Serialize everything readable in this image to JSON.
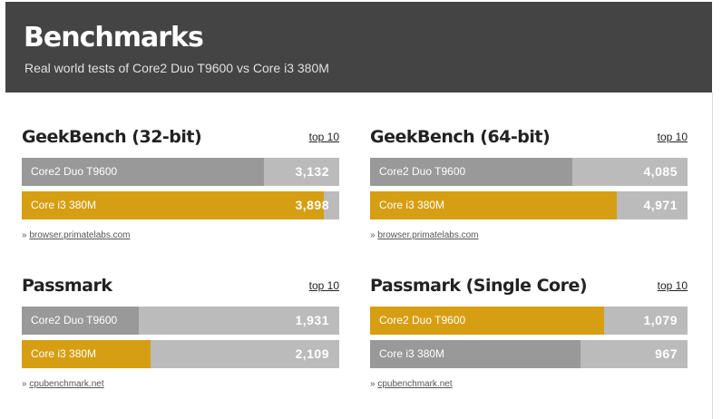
{
  "header": {
    "title": "Benchmarks",
    "subtitle": "Real world tests of Core2 Duo T9600  vs Core i3 380M"
  },
  "colors": {
    "header_bg": "#444444",
    "gold": "#d69e12",
    "gray": "#999999",
    "track": "#bbbbbb"
  },
  "benchmarks": [
    {
      "title": "GeekBench (32-bit)",
      "top10": "top 10",
      "caret": "»",
      "source": "browser.primatelabs.com",
      "rows": [
        {
          "label": "Core2 Duo T9600",
          "value": "3,132",
          "fraction": 0.764,
          "color": "gray"
        },
        {
          "label": "Core i3 380M",
          "value": "3,898",
          "fraction": 0.95,
          "color": "gold"
        }
      ]
    },
    {
      "title": "GeekBench (64-bit)",
      "top10": "top 10",
      "caret": "»",
      "source": "browser.primatelabs.com",
      "rows": [
        {
          "label": "Core2 Duo T9600",
          "value": "4,085",
          "fraction": 0.636,
          "color": "gray"
        },
        {
          "label": "Core i3 380M",
          "value": "4,971",
          "fraction": 0.776,
          "color": "gold"
        }
      ]
    },
    {
      "title": "Passmark",
      "top10": "top 10",
      "caret": "»",
      "source": "cpubenchmark.net",
      "rows": [
        {
          "label": "Core2 Duo T9600",
          "value": "1,931",
          "fraction": 0.369,
          "color": "gray"
        },
        {
          "label": "Core i3 380M",
          "value": "2,109",
          "fraction": 0.406,
          "color": "gold"
        }
      ]
    },
    {
      "title": "Passmark (Single Core)",
      "top10": "top 10",
      "caret": "»",
      "source": "cpubenchmark.net",
      "rows": [
        {
          "label": "Core2 Duo T9600",
          "value": "1,079",
          "fraction": 0.736,
          "color": "gold"
        },
        {
          "label": "Core i3 380M",
          "value": "967",
          "fraction": 0.664,
          "color": "gray"
        }
      ]
    }
  ]
}
